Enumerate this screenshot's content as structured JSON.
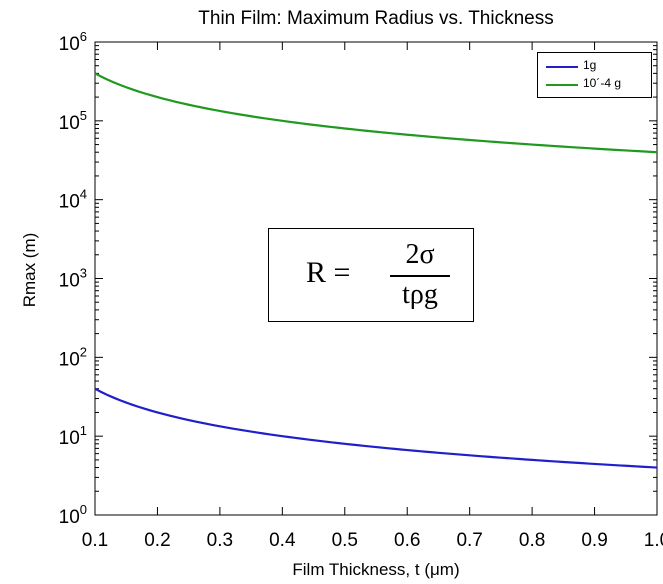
{
  "chart_data": {
    "type": "line",
    "title": "Thin Film: Maximum Radius vs. Thickness",
    "xlabel": "Film Thickness, t (μm)",
    "ylabel": "Rmax (m)",
    "xlim": [
      0.1,
      1.0
    ],
    "ylim": [
      1,
      1000000
    ],
    "yscale": "log",
    "grid": false,
    "legend_placement": "top-right",
    "x_ticks": [
      "0.1",
      "0.2",
      "0.3",
      "0.4",
      "0.5",
      "0.6",
      "0.7",
      "0.8",
      "0.9",
      "1.0"
    ],
    "y_ticks": [
      {
        "value": 1,
        "base": "10",
        "exp": "0"
      },
      {
        "value": 10,
        "base": "10",
        "exp": "1"
      },
      {
        "value": 100,
        "base": "10",
        "exp": "2"
      },
      {
        "value": 1000,
        "base": "10",
        "exp": "3"
      },
      {
        "value": 10000,
        "base": "10",
        "exp": "4"
      },
      {
        "value": 100000,
        "base": "10",
        "exp": "5"
      },
      {
        "value": 1000000,
        "base": "10",
        "exp": "6"
      }
    ],
    "x": [
      0.1,
      0.2,
      0.3,
      0.4,
      0.5,
      0.6,
      0.7,
      0.8,
      0.9,
      1.0
    ],
    "series": [
      {
        "name": "1g",
        "color": "#1f1fcc",
        "values": [
          40,
          20,
          13.3,
          10,
          8,
          6.7,
          5.7,
          5,
          4.4,
          4
        ]
      },
      {
        "name": "10´-4 g",
        "color": "#1f9a1f",
        "values": [
          400000,
          200000,
          133000,
          100000,
          80000,
          67000,
          57000,
          50000,
          44000,
          40000
        ]
      }
    ],
    "annotation": {
      "lhs": "R =",
      "numerator": "2σ",
      "denominator": "tρg"
    }
  }
}
